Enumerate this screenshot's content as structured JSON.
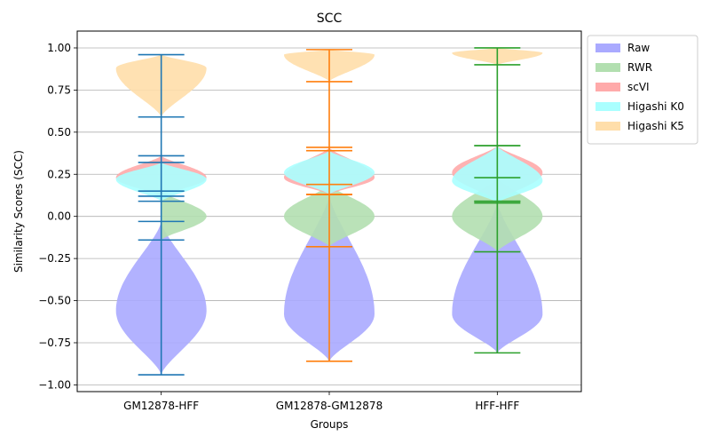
{
  "chart_data": {
    "type": "violin",
    "title": "SCC",
    "xlabel": "Groups",
    "ylabel": "Similarity Scores (SCC)",
    "categories": [
      "GM12878-HFF",
      "GM12878-GM12878",
      "HFF-HFF"
    ],
    "ylim": [
      -1.04,
      1.1
    ],
    "yticks": [
      -1.0,
      -0.75,
      -0.5,
      -0.25,
      0.0,
      0.25,
      0.5,
      0.75,
      1.0
    ],
    "ytick_labels": [
      "−1.00",
      "−0.75",
      "−0.50",
      "−0.25",
      "0.00",
      "0.25",
      "0.50",
      "0.75",
      "1.00"
    ],
    "grid": "horizontal",
    "legend_position": "outside right",
    "whisker_colors": [
      "#1f77b4",
      "#ff7f0e",
      "#2ca02c"
    ],
    "series": [
      {
        "name": "Raw",
        "color": "#aaaaff",
        "stats": [
          {
            "min": -0.94,
            "max": -0.03,
            "mode": -0.56
          },
          {
            "min": -0.86,
            "max": 0.13,
            "mode": -0.58
          },
          {
            "min": -0.81,
            "max": 0.09,
            "mode": -0.58
          }
        ]
      },
      {
        "name": "RWR",
        "color": "#b2dfb0",
        "stats": [
          {
            "min": -0.14,
            "max": 0.15,
            "mode": 0.0
          },
          {
            "min": -0.18,
            "max": 0.19,
            "mode": 0.0
          },
          {
            "min": -0.21,
            "max": 0.23,
            "mode": 0.0
          }
        ]
      },
      {
        "name": "scVI",
        "color": "#ffaaaa",
        "stats": [
          {
            "min": 0.12,
            "max": 0.36,
            "mode": 0.23
          },
          {
            "min": 0.13,
            "max": 0.41,
            "mode": 0.23
          },
          {
            "min": 0.09,
            "max": 0.42,
            "mode": 0.26
          }
        ]
      },
      {
        "name": "Higashi K0",
        "color": "#aaffff",
        "stats": [
          {
            "min": 0.09,
            "max": 0.32,
            "mode": 0.22
          },
          {
            "min": 0.13,
            "max": 0.39,
            "mode": 0.26
          },
          {
            "min": 0.08,
            "max": 0.42,
            "mode": 0.21
          }
        ]
      },
      {
        "name": "Higashi K5",
        "color": "#ffdeaa",
        "stats": [
          {
            "min": 0.59,
            "max": 0.96,
            "mode": 0.88
          },
          {
            "min": 0.8,
            "max": 0.99,
            "mode": 0.96
          },
          {
            "min": 0.9,
            "max": 1.0,
            "mode": 0.97
          }
        ]
      }
    ]
  }
}
